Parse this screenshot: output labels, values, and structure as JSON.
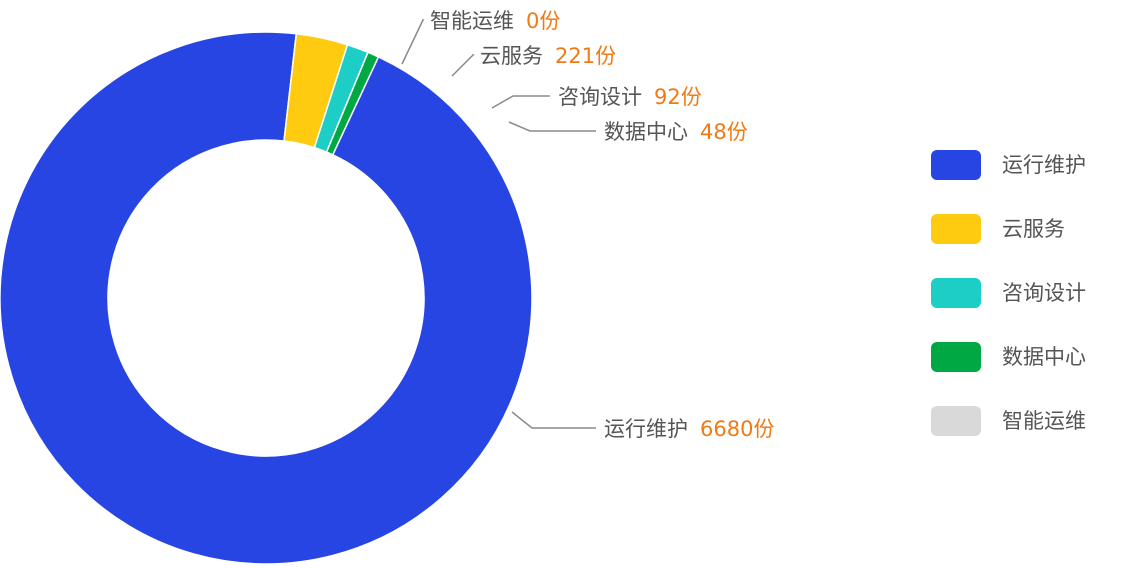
{
  "chart_data": {
    "type": "pie",
    "variant": "donut",
    "unit": "份",
    "legend_position": "right",
    "slices": [
      {
        "name": "运行维护",
        "value": 6680,
        "value_label": "6680份",
        "color": "#2745e2"
      },
      {
        "name": "云服务",
        "value": 221,
        "value_label": "221份",
        "color": "#fecb10"
      },
      {
        "name": "咨询设计",
        "value": 92,
        "value_label": "92份",
        "color": "#1ccec5"
      },
      {
        "name": "数据中心",
        "value": 48,
        "value_label": "48份",
        "color": "#00a843"
      },
      {
        "name": "智能运维",
        "value": 0,
        "value_label": "0份",
        "color": "#d9d9d9"
      }
    ],
    "legend": {
      "items": [
        "运行维护",
        "云服务",
        "咨询设计",
        "数据中心",
        "智能运维"
      ]
    }
  }
}
